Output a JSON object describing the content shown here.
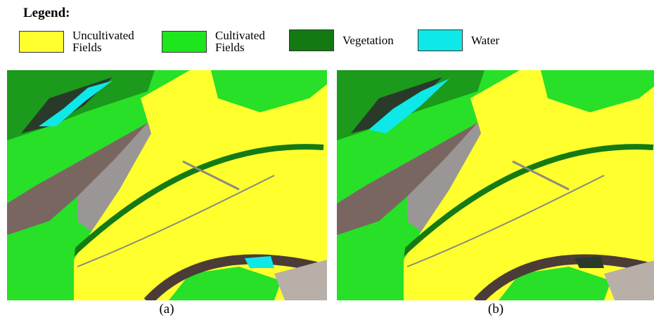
{
  "legend": {
    "title": "Legend:",
    "items": [
      {
        "label": "Uncultivated Fields",
        "color": "#ffff2e"
      },
      {
        "label": "Cultivated Fields",
        "color": "#1ee61e"
      },
      {
        "label": "Vegetation",
        "color": "#137a13"
      },
      {
        "label": "Water",
        "color": "#0fe8e8"
      }
    ]
  },
  "panels": [
    {
      "label": "(a)"
    },
    {
      "label": "(b)"
    }
  ]
}
